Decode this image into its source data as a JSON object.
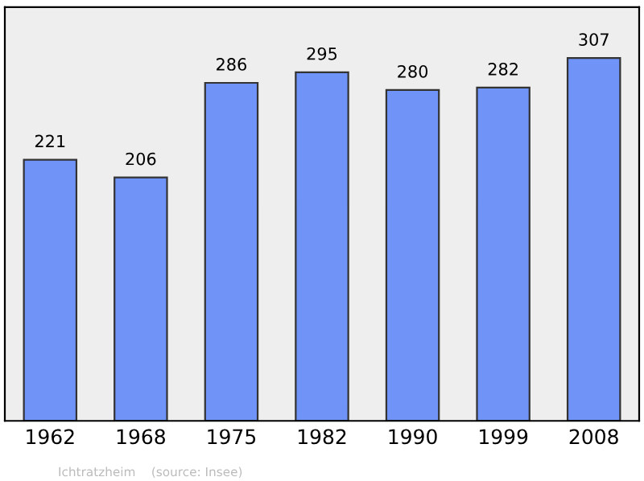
{
  "chart_data": {
    "type": "bar",
    "categories": [
      "1962",
      "1968",
      "1975",
      "1982",
      "1990",
      "1999",
      "2008"
    ],
    "values": [
      221,
      206,
      286,
      295,
      280,
      282,
      307
    ],
    "color": "#7093f7",
    "data_labels": true,
    "ylim": [
      0,
      350
    ],
    "tick_labels": "x",
    "grid": false,
    "annotations": [
      "Ichtratzheim    (source: Insee)"
    ]
  }
}
